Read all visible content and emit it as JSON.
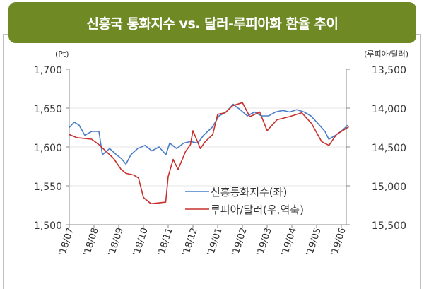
{
  "chart_data": {
    "type": "line",
    "title": "신흥국 통화지수 vs. 달러-루피아화 환율 추이",
    "ylabel_left": "(Pt)",
    "ylabel_right": "(루피아/달러)",
    "x_unit": "months since 2018-07",
    "x_tick_labels": [
      "'18/07",
      "'18/08",
      "'18/09",
      "'18/10",
      "'18/11",
      "'18/12",
      "'19/01",
      "'19/02",
      "'19/03",
      "'19/04",
      "'19/05",
      "'19/06"
    ],
    "ylim_left": [
      1500,
      1700
    ],
    "yticks_left": [
      "1,500",
      "1,550",
      "1,600",
      "1,650",
      "1,700"
    ],
    "ylim_right": [
      15500,
      13500
    ],
    "yticks_right": [
      "15,500",
      "15,000",
      "14,500",
      "14,000",
      "13,500"
    ],
    "right_axis_inverted": true,
    "grid": true,
    "legend_position": "bottom-right",
    "series": [
      {
        "name": "신흥통화지수(좌)",
        "axis": "left",
        "color": "#4a7ec8",
        "points": [
          [
            0,
            1625
          ],
          [
            0.2,
            1632
          ],
          [
            0.4,
            1628
          ],
          [
            0.63,
            1615
          ],
          [
            0.91,
            1620
          ],
          [
            1.2,
            1620
          ],
          [
            1.34,
            1590
          ],
          [
            1.63,
            1598
          ],
          [
            1.91,
            1590
          ],
          [
            2.11,
            1585
          ],
          [
            2.29,
            1578
          ],
          [
            2.49,
            1590
          ],
          [
            2.77,
            1598
          ],
          [
            3.06,
            1602
          ],
          [
            3.34,
            1595
          ],
          [
            3.63,
            1600
          ],
          [
            3.91,
            1590
          ],
          [
            4.06,
            1605
          ],
          [
            4.34,
            1598
          ],
          [
            4.63,
            1605
          ],
          [
            4.91,
            1607
          ],
          [
            5.2,
            1605
          ],
          [
            5.43,
            1615
          ],
          [
            5.77,
            1625
          ],
          [
            6.06,
            1640
          ],
          [
            6.34,
            1645
          ],
          [
            6.63,
            1655
          ],
          [
            6.91,
            1648
          ],
          [
            7.2,
            1640
          ],
          [
            7.49,
            1645
          ],
          [
            7.77,
            1640
          ],
          [
            8.06,
            1640
          ],
          [
            8.34,
            1645
          ],
          [
            8.63,
            1647
          ],
          [
            8.91,
            1645
          ],
          [
            9.2,
            1648
          ],
          [
            9.49,
            1645
          ],
          [
            9.77,
            1640
          ],
          [
            10.06,
            1630
          ],
          [
            10.34,
            1620
          ],
          [
            10.49,
            1610
          ],
          [
            10.77,
            1615
          ],
          [
            11.06,
            1622
          ],
          [
            11.26,
            1628
          ]
        ]
      },
      {
        "name": "루피아/달러(우,역축)",
        "axis": "right",
        "color": "#c8302c",
        "points": [
          [
            0,
            14340
          ],
          [
            0.3,
            14380
          ],
          [
            0.9,
            14400
          ],
          [
            1.2,
            14470
          ],
          [
            1.5,
            14560
          ],
          [
            1.8,
            14650
          ],
          [
            2.1,
            14790
          ],
          [
            2.3,
            14840
          ],
          [
            2.6,
            14860
          ],
          [
            2.8,
            14900
          ],
          [
            3.0,
            15150
          ],
          [
            3.3,
            15230
          ],
          [
            3.6,
            15220
          ],
          [
            3.9,
            15210
          ],
          [
            4.0,
            14880
          ],
          [
            4.2,
            14660
          ],
          [
            4.4,
            14790
          ],
          [
            4.7,
            14560
          ],
          [
            4.9,
            14470
          ],
          [
            5.0,
            14290
          ],
          [
            5.3,
            14520
          ],
          [
            5.5,
            14430
          ],
          [
            5.8,
            14340
          ],
          [
            6.0,
            14080
          ],
          [
            6.3,
            14060
          ],
          [
            6.6,
            13970
          ],
          [
            7.0,
            13930
          ],
          [
            7.3,
            14110
          ],
          [
            7.7,
            14050
          ],
          [
            8.0,
            14290
          ],
          [
            8.4,
            14150
          ],
          [
            8.9,
            14110
          ],
          [
            9.4,
            14060
          ],
          [
            9.8,
            14200
          ],
          [
            10.2,
            14430
          ],
          [
            10.5,
            14480
          ],
          [
            10.8,
            14340
          ],
          [
            11.3,
            14240
          ]
        ]
      }
    ]
  }
}
